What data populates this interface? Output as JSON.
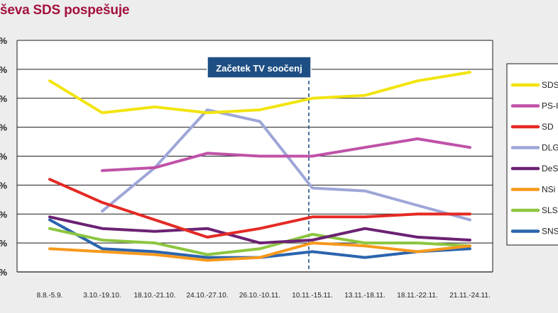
{
  "chart_data": {
    "type": "line",
    "title": "ševa SDS pospešuje",
    "categories": [
      "8.8.-5.9.",
      "3.10.-19.10.",
      "18.10.-21.10.",
      "24.10.-27.10.",
      "26.10.-10.11.",
      "10.11.-15.11.",
      "13.11.-18.11.",
      "18.11.-22.11.",
      "21.11.-24.11."
    ],
    "y_tick_labels": [
      "%",
      "%",
      "%",
      "%",
      "%",
      "%",
      "%",
      "%",
      "%"
    ],
    "ylim": [
      0,
      8
    ],
    "grid": true,
    "legend_position": "right",
    "annotation": {
      "label": "Začetek TV soočenj",
      "position_category": "10.11.-15.11."
    },
    "series": [
      {
        "name": "SDS",
        "color": "#f2e40f",
        "values": [
          6.6,
          5.5,
          5.7,
          5.5,
          5.6,
          6.0,
          6.1,
          6.6,
          6.9
        ]
      },
      {
        "name": "PS-I",
        "color": "#bf52a8",
        "values": [
          null,
          3.5,
          3.6,
          4.1,
          4.0,
          4.0,
          4.3,
          4.6,
          4.3
        ]
      },
      {
        "name": "SD",
        "color": "#e42a24",
        "values": [
          3.2,
          2.4,
          1.8,
          1.2,
          1.5,
          1.9,
          1.9,
          2.0,
          2.0
        ]
      },
      {
        "name": "DLG",
        "color": "#9ea6d8",
        "values": [
          null,
          2.1,
          3.6,
          5.6,
          5.2,
          2.9,
          2.8,
          2.3,
          1.8
        ]
      },
      {
        "name": "DeS",
        "color": "#6b2273",
        "values": [
          1.9,
          1.5,
          1.4,
          1.5,
          1.0,
          1.1,
          1.5,
          1.2,
          1.1
        ]
      },
      {
        "name": "NSi",
        "color": "#f7991c",
        "values": [
          0.8,
          0.7,
          0.6,
          0.4,
          0.5,
          1.0,
          0.9,
          0.7,
          0.9
        ]
      },
      {
        "name": "SLS",
        "color": "#8cc63f",
        "values": [
          1.5,
          1.1,
          1.0,
          0.6,
          0.8,
          1.3,
          1.0,
          1.0,
          0.9
        ]
      },
      {
        "name": "SNS",
        "color": "#2b64ae",
        "values": [
          1.8,
          0.8,
          0.7,
          0.5,
          0.5,
          0.7,
          0.5,
          0.7,
          0.8
        ]
      }
    ]
  }
}
